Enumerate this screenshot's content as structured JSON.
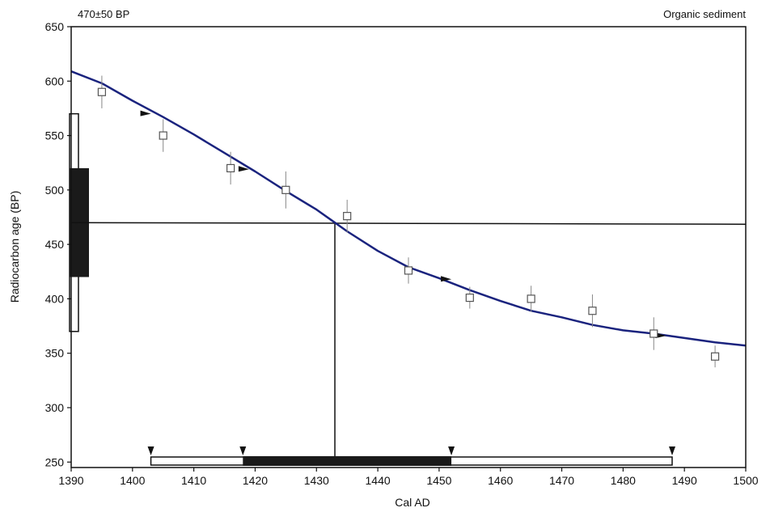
{
  "chart_data": {
    "type": "scatter",
    "title_left": "470±50 BP",
    "title_right": "Organic sediment",
    "xlabel": "Cal AD",
    "ylabel": "Radiocarbon age (BP)",
    "xlim": [
      1390,
      1500
    ],
    "ylim": [
      245,
      650
    ],
    "x_ticks": [
      1390,
      1400,
      1410,
      1420,
      1430,
      1440,
      1450,
      1460,
      1470,
      1480,
      1490,
      1500
    ],
    "y_ticks": [
      250,
      300,
      350,
      400,
      450,
      500,
      550,
      600,
      650
    ],
    "grid": false,
    "measurement": {
      "age": 470,
      "sigma1": [
        420,
        520
      ],
      "sigma2": [
        370,
        570
      ]
    },
    "intercept_year": 1433,
    "calibration_curve": [
      [
        1390,
        609
      ],
      [
        1395,
        598
      ],
      [
        1400,
        582
      ],
      [
        1405,
        567
      ],
      [
        1410,
        551
      ],
      [
        1415,
        534
      ],
      [
        1420,
        517
      ],
      [
        1425,
        499
      ],
      [
        1430,
        482
      ],
      [
        1433,
        470
      ],
      [
        1435,
        462
      ],
      [
        1440,
        444
      ],
      [
        1445,
        429
      ],
      [
        1450,
        419
      ],
      [
        1455,
        408
      ],
      [
        1460,
        398
      ],
      [
        1465,
        389
      ],
      [
        1470,
        383
      ],
      [
        1475,
        376
      ],
      [
        1480,
        371
      ],
      [
        1485,
        368
      ],
      [
        1490,
        364
      ],
      [
        1495,
        360
      ],
      [
        1500,
        357
      ]
    ],
    "data_points": [
      {
        "x": 1395,
        "y": 590,
        "err": 15
      },
      {
        "x": 1405,
        "y": 550,
        "err": 15
      },
      {
        "x": 1416,
        "y": 520,
        "err": 15
      },
      {
        "x": 1425,
        "y": 500,
        "err": 17
      },
      {
        "x": 1435,
        "y": 476,
        "err": 15
      },
      {
        "x": 1445,
        "y": 426,
        "err": 12
      },
      {
        "x": 1455,
        "y": 401,
        "err": 10
      },
      {
        "x": 1465,
        "y": 400,
        "err": 12
      },
      {
        "x": 1475,
        "y": 389,
        "err": 15
      },
      {
        "x": 1485,
        "y": 368,
        "err": 15
      },
      {
        "x": 1495,
        "y": 347,
        "err": 10
      }
    ],
    "curve_markers": [
      {
        "x": 1403,
        "y": 570
      },
      {
        "x": 1419,
        "y": 519
      },
      {
        "x": 1452,
        "y": 418
      },
      {
        "x": 1487,
        "y": 366
      }
    ],
    "cal_range_1sigma": [
      1418,
      1452
    ],
    "cal_range_2sigma": [
      1403,
      1488
    ],
    "colors": {
      "curve": "#1a237e",
      "axis": "#111111",
      "points": "#555555"
    }
  }
}
